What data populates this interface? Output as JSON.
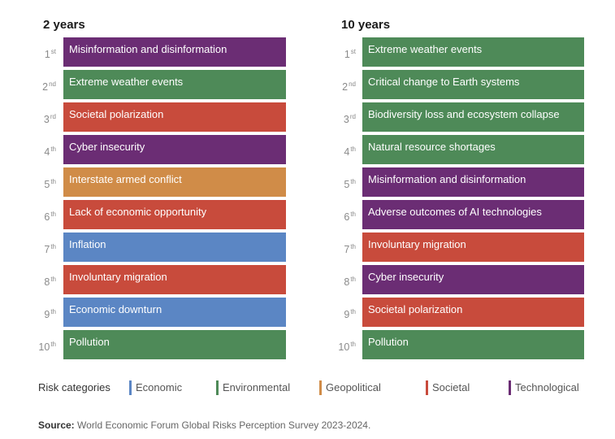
{
  "chart_data": {
    "type": "table",
    "title": "",
    "columns": [
      {
        "title": "2 years",
        "items": [
          {
            "rank": "1",
            "suffix": "st",
            "label": "Misinformation and disinformation",
            "category": "Technological"
          },
          {
            "rank": "2",
            "suffix": "nd",
            "label": "Extreme weather events",
            "category": "Environmental"
          },
          {
            "rank": "3",
            "suffix": "rd",
            "label": "Societal polarization",
            "category": "Societal"
          },
          {
            "rank": "4",
            "suffix": "th",
            "label": "Cyber insecurity",
            "category": "Technological"
          },
          {
            "rank": "5",
            "suffix": "th",
            "label": "Interstate armed conflict",
            "category": "Geopolitical"
          },
          {
            "rank": "6",
            "suffix": "th",
            "label": "Lack of economic opportunity",
            "category": "Societal"
          },
          {
            "rank": "7",
            "suffix": "th",
            "label": "Inflation",
            "category": "Economic"
          },
          {
            "rank": "8",
            "suffix": "th",
            "label": "Involuntary migration",
            "category": "Societal"
          },
          {
            "rank": "9",
            "suffix": "th",
            "label": "Economic downturn",
            "category": "Economic"
          },
          {
            "rank": "10",
            "suffix": "th",
            "label": "Pollution",
            "category": "Environmental"
          }
        ]
      },
      {
        "title": "10 years",
        "items": [
          {
            "rank": "1",
            "suffix": "st",
            "label": "Extreme weather events",
            "category": "Environmental"
          },
          {
            "rank": "2",
            "suffix": "nd",
            "label": "Critical change to Earth systems",
            "category": "Environmental"
          },
          {
            "rank": "3",
            "suffix": "rd",
            "label": "Biodiversity loss and ecosystem collapse",
            "category": "Environmental"
          },
          {
            "rank": "4",
            "suffix": "th",
            "label": "Natural resource shortages",
            "category": "Environmental"
          },
          {
            "rank": "5",
            "suffix": "th",
            "label": "Misinformation and disinformation",
            "category": "Technological"
          },
          {
            "rank": "6",
            "suffix": "th",
            "label": "Adverse outcomes of AI technologies",
            "category": "Technological"
          },
          {
            "rank": "7",
            "suffix": "th",
            "label": "Involuntary migration",
            "category": "Societal"
          },
          {
            "rank": "8",
            "suffix": "th",
            "label": "Cyber insecurity",
            "category": "Technological"
          },
          {
            "rank": "9",
            "suffix": "th",
            "label": "Societal polarization",
            "category": "Societal"
          },
          {
            "rank": "10",
            "suffix": "th",
            "label": "Pollution",
            "category": "Environmental"
          }
        ]
      }
    ],
    "legend": {
      "title": "Risk categories",
      "categories": [
        {
          "name": "Economic",
          "color": "#5b86c4"
        },
        {
          "name": "Environmental",
          "color": "#4e8a58"
        },
        {
          "name": "Geopolitical",
          "color": "#d08c48"
        },
        {
          "name": "Societal",
          "color": "#c84b3c"
        },
        {
          "name": "Technological",
          "color": "#6b2d74"
        }
      ]
    },
    "source_label": "Source:",
    "source_text": "World Economic Forum Global Risks Perception Survey 2023-2024."
  }
}
